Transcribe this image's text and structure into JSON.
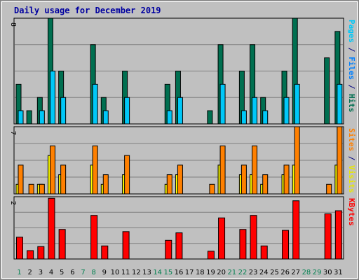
{
  "chart_data": {
    "type": "bar",
    "title": "Daily usage for December 2019",
    "categories": [
      "1",
      "2",
      "3",
      "4",
      "5",
      "6",
      "7",
      "8",
      "9",
      "10",
      "11",
      "12",
      "13",
      "14",
      "15",
      "16",
      "17",
      "18",
      "19",
      "20",
      "21",
      "22",
      "23",
      "24",
      "25",
      "26",
      "27",
      "28",
      "29",
      "30",
      "31"
    ],
    "weekend_days": [
      "1",
      "7",
      "8",
      "14",
      "15",
      "21",
      "22",
      "28",
      "29"
    ],
    "panels": [
      {
        "id": "hits",
        "ymax_label": "8",
        "ylim": [
          0,
          8
        ],
        "series": [
          {
            "name": "Hits",
            "color": "#006f50",
            "values": [
              3,
              1,
              2,
              8,
              4,
              0,
              0,
              6,
              2,
              0,
              4,
              0,
              0,
              0,
              3,
              4,
              0,
              0,
              1,
              6,
              0,
              4,
              6,
              2,
              0,
              4,
              8,
              0,
              0,
              5,
              7
            ]
          },
          {
            "name": "Files",
            "color": "#00c8f8",
            "values": [
              1,
              0,
              1,
              4,
              2,
              0,
              0,
              3,
              1,
              0,
              2,
              0,
              0,
              0,
              1,
              2,
              0,
              0,
              0,
              3,
              0,
              1,
              2,
              1,
              0,
              2,
              3,
              0,
              0,
              0,
              3
            ]
          },
          {
            "name": "Pages",
            "color": "#00e4ff",
            "values": []
          }
        ],
        "legend": [
          {
            "text": "Pages",
            "color": "#00c8f8"
          },
          {
            "text": " / ",
            "color": "#000080"
          },
          {
            "text": "Files",
            "color": "#0080ff"
          },
          {
            "text": " / ",
            "color": "#000080"
          },
          {
            "text": "Hits",
            "color": "#006f50"
          }
        ]
      },
      {
        "id": "visits",
        "ymax_label": "7",
        "ylim": [
          0,
          7
        ],
        "series": [
          {
            "name": "Visits",
            "color": "#ffff00",
            "values": [
              1,
              0,
              1,
              4,
              2,
              0,
              0,
              3,
              1,
              0,
              2,
              0,
              0,
              0,
              1,
              2,
              0,
              0,
              0,
              3,
              0,
              2,
              2,
              1,
              0,
              2,
              3,
              0,
              0,
              0,
              3
            ]
          },
          {
            "name": "Sites",
            "color": "#ff8000",
            "values": [
              3,
              1,
              1,
              5,
              3,
              0,
              0,
              5,
              2,
              0,
              4,
              0,
              0,
              0,
              2,
              3,
              0,
              0,
              1,
              5,
              0,
              3,
              5,
              2,
              0,
              3,
              7,
              0,
              0,
              1,
              7
            ]
          }
        ],
        "legend": [
          {
            "text": "Sites",
            "color": "#ff8000"
          },
          {
            "text": " / ",
            "color": "#000080"
          },
          {
            "text": "Visits",
            "color": "#e8e800"
          }
        ]
      },
      {
        "id": "kbytes",
        "ymax_label": "2",
        "ylim": [
          0,
          2
        ],
        "series": [
          {
            "name": "KBytes",
            "color": "#ff0000",
            "values": [
              0.7,
              0.27,
              0.4,
              1.95,
              0.95,
              0,
              0,
              1.4,
              0.42,
              0,
              0.88,
              0,
              0,
              0,
              0.6,
              0.84,
              0,
              0,
              0.25,
              1.32,
              0,
              0.95,
              1.4,
              0.42,
              0,
              0.92,
              1.87,
              0,
              0,
              1.45,
              1.55
            ]
          }
        ],
        "legend": [
          {
            "text": "KBytes",
            "color": "#ff0000"
          }
        ]
      }
    ]
  }
}
